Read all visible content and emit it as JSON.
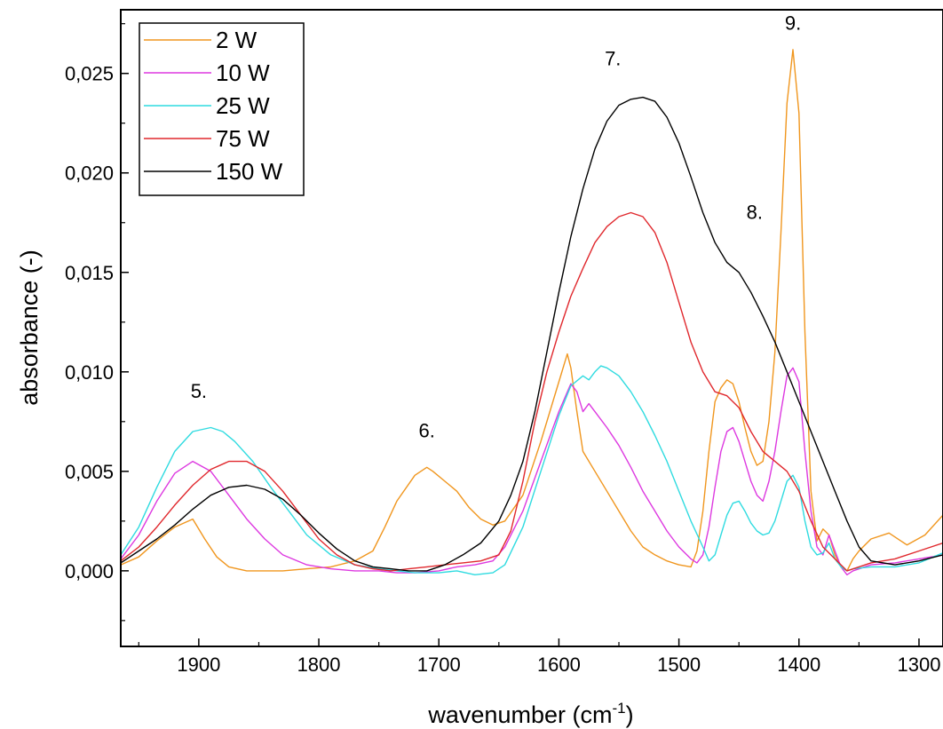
{
  "chart_data": {
    "type": "line",
    "xlabel": "wavenumber (cm",
    "xlabel_sup": "-1",
    "xlabel_close": ")",
    "ylabel": "absorbance (-)",
    "x_reversed": true,
    "xlim": [
      1965,
      1280
    ],
    "ylim": [
      -0.0038,
      0.0282
    ],
    "x_ticks": [
      {
        "value": 1900,
        "label": "1900"
      },
      {
        "value": 1800,
        "label": "1800"
      },
      {
        "value": 1700,
        "label": "1700"
      },
      {
        "value": 1600,
        "label": "1600"
      },
      {
        "value": 1500,
        "label": "1500"
      },
      {
        "value": 1400,
        "label": "1400"
      },
      {
        "value": 1300,
        "label": "1300"
      }
    ],
    "y_ticks": [
      {
        "value": 0.0,
        "label": "0,000"
      },
      {
        "value": 0.005,
        "label": "0,005"
      },
      {
        "value": 0.01,
        "label": "0,010"
      },
      {
        "value": 0.015,
        "label": "0,015"
      },
      {
        "value": 0.02,
        "label": "0,020"
      },
      {
        "value": 0.025,
        "label": "0,025"
      }
    ],
    "grid": false,
    "legend_position": "top-left",
    "series": [
      {
        "name": "2 W",
        "color": "#f0961e",
        "x": [
          1965,
          1950,
          1935,
          1920,
          1905,
          1895,
          1885,
          1875,
          1860,
          1845,
          1830,
          1810,
          1790,
          1770,
          1755,
          1745,
          1735,
          1720,
          1710,
          1705,
          1695,
          1685,
          1675,
          1665,
          1655,
          1645,
          1630,
          1615,
          1600,
          1593,
          1590,
          1585,
          1580,
          1570,
          1560,
          1550,
          1540,
          1530,
          1520,
          1510,
          1500,
          1490,
          1485,
          1480,
          1475,
          1470,
          1465,
          1460,
          1455,
          1450,
          1445,
          1440,
          1435,
          1430,
          1425,
          1420,
          1415,
          1410,
          1405,
          1400,
          1395,
          1390,
          1385,
          1380,
          1375,
          1370,
          1365,
          1360,
          1355,
          1350,
          1340,
          1325,
          1310,
          1295,
          1280
        ],
        "y": [
          0.0003,
          0.0007,
          0.0015,
          0.0022,
          0.0026,
          0.0016,
          0.0007,
          0.0002,
          0.0,
          0.0,
          0.0,
          0.0001,
          0.0002,
          0.0005,
          0.001,
          0.0022,
          0.0035,
          0.0048,
          0.0052,
          0.005,
          0.0045,
          0.004,
          0.0032,
          0.0026,
          0.0023,
          0.0025,
          0.0038,
          0.0065,
          0.0095,
          0.0109,
          0.0102,
          0.008,
          0.006,
          0.005,
          0.004,
          0.003,
          0.002,
          0.0012,
          0.0008,
          0.0005,
          0.0003,
          0.0002,
          0.001,
          0.003,
          0.006,
          0.0085,
          0.0092,
          0.0096,
          0.0094,
          0.0085,
          0.0072,
          0.006,
          0.0053,
          0.0055,
          0.0075,
          0.011,
          0.017,
          0.0235,
          0.0262,
          0.023,
          0.012,
          0.004,
          0.0015,
          0.0021,
          0.0018,
          0.0008,
          0.0002,
          0.0,
          0.0006,
          0.001,
          0.0016,
          0.0019,
          0.0013,
          0.0018,
          0.0028
        ]
      },
      {
        "name": "10 W",
        "color": "#dd39e0",
        "x": [
          1965,
          1950,
          1935,
          1920,
          1905,
          1890,
          1875,
          1860,
          1845,
          1830,
          1810,
          1790,
          1770,
          1750,
          1735,
          1720,
          1700,
          1685,
          1670,
          1655,
          1645,
          1630,
          1615,
          1600,
          1590,
          1585,
          1580,
          1575,
          1570,
          1560,
          1550,
          1540,
          1530,
          1520,
          1510,
          1500,
          1490,
          1485,
          1480,
          1475,
          1470,
          1465,
          1460,
          1455,
          1450,
          1445,
          1440,
          1435,
          1430,
          1425,
          1420,
          1415,
          1410,
          1405,
          1400,
          1395,
          1390,
          1385,
          1380,
          1375,
          1370,
          1365,
          1360,
          1355,
          1340,
          1320,
          1300,
          1280
        ],
        "y": [
          0.0006,
          0.0018,
          0.0035,
          0.0049,
          0.0055,
          0.005,
          0.0038,
          0.0026,
          0.0016,
          0.0008,
          0.0003,
          0.0001,
          0.0,
          0.0,
          -0.0001,
          -0.0001,
          0.0,
          0.0002,
          0.0003,
          0.0005,
          0.0012,
          0.003,
          0.0055,
          0.008,
          0.0094,
          0.009,
          0.008,
          0.0084,
          0.008,
          0.0072,
          0.0063,
          0.0052,
          0.004,
          0.003,
          0.002,
          0.0012,
          0.0006,
          0.0004,
          0.0008,
          0.0022,
          0.0042,
          0.006,
          0.007,
          0.0072,
          0.0065,
          0.0055,
          0.0045,
          0.0038,
          0.0035,
          0.0045,
          0.006,
          0.008,
          0.0098,
          0.0102,
          0.0095,
          0.006,
          0.003,
          0.0012,
          0.0008,
          0.0018,
          0.001,
          0.0002,
          -0.0002,
          0.0,
          0.0003,
          0.0004,
          0.0006,
          0.0008
        ]
      },
      {
        "name": "25 W",
        "color": "#2fdbe0",
        "x": [
          1965,
          1950,
          1935,
          1920,
          1905,
          1890,
          1880,
          1870,
          1855,
          1840,
          1825,
          1810,
          1790,
          1770,
          1750,
          1735,
          1720,
          1700,
          1685,
          1670,
          1655,
          1645,
          1630,
          1615,
          1600,
          1590,
          1580,
          1575,
          1570,
          1565,
          1560,
          1550,
          1540,
          1530,
          1520,
          1510,
          1500,
          1490,
          1480,
          1475,
          1470,
          1465,
          1460,
          1455,
          1450,
          1445,
          1440,
          1435,
          1430,
          1425,
          1420,
          1415,
          1410,
          1405,
          1400,
          1395,
          1390,
          1385,
          1380,
          1375,
          1370,
          1365,
          1360,
          1355,
          1340,
          1320,
          1300,
          1280
        ],
        "y": [
          0.0008,
          0.0022,
          0.0042,
          0.006,
          0.007,
          0.0072,
          0.007,
          0.0065,
          0.0055,
          0.0042,
          0.003,
          0.0018,
          0.0008,
          0.0003,
          0.0001,
          0.0,
          -0.0001,
          -0.0001,
          0.0,
          -0.0002,
          -0.0001,
          0.0003,
          0.0022,
          0.005,
          0.0078,
          0.0093,
          0.0098,
          0.0096,
          0.01,
          0.0103,
          0.0102,
          0.0098,
          0.009,
          0.008,
          0.0068,
          0.0055,
          0.004,
          0.0025,
          0.0012,
          0.0005,
          0.0008,
          0.0018,
          0.0028,
          0.0034,
          0.0035,
          0.003,
          0.0024,
          0.002,
          0.0018,
          0.0019,
          0.0025,
          0.0035,
          0.0045,
          0.0048,
          0.0042,
          0.0025,
          0.0012,
          0.0008,
          0.0009,
          0.0014,
          0.0006,
          0.0002,
          0.0,
          0.0001,
          0.0002,
          0.0002,
          0.0004,
          0.0009
        ]
      },
      {
        "name": "75 W",
        "color": "#e0282d",
        "x": [
          1965,
          1950,
          1935,
          1920,
          1905,
          1890,
          1875,
          1860,
          1845,
          1830,
          1815,
          1800,
          1785,
          1770,
          1755,
          1740,
          1725,
          1710,
          1695,
          1680,
          1665,
          1650,
          1640,
          1630,
          1620,
          1610,
          1600,
          1590,
          1580,
          1570,
          1560,
          1550,
          1540,
          1530,
          1520,
          1510,
          1500,
          1490,
          1480,
          1470,
          1460,
          1450,
          1440,
          1430,
          1420,
          1410,
          1400,
          1390,
          1380,
          1370,
          1360,
          1350,
          1340,
          1320,
          1300,
          1280
        ],
        "y": [
          0.0005,
          0.0012,
          0.0022,
          0.0033,
          0.0043,
          0.0051,
          0.0055,
          0.0055,
          0.005,
          0.004,
          0.0028,
          0.0016,
          0.0008,
          0.0003,
          0.0001,
          0.0,
          0.0001,
          0.0002,
          0.0003,
          0.0004,
          0.0005,
          0.0008,
          0.002,
          0.0045,
          0.0075,
          0.01,
          0.012,
          0.0138,
          0.0152,
          0.0165,
          0.0173,
          0.0178,
          0.018,
          0.0178,
          0.017,
          0.0155,
          0.0135,
          0.0115,
          0.01,
          0.009,
          0.0088,
          0.0082,
          0.007,
          0.006,
          0.0055,
          0.005,
          0.004,
          0.0025,
          0.0012,
          0.0006,
          0.0,
          0.0002,
          0.0004,
          0.0006,
          0.001,
          0.0014
        ]
      },
      {
        "name": "150 W",
        "color": "#000000",
        "x": [
          1965,
          1950,
          1935,
          1920,
          1905,
          1890,
          1875,
          1860,
          1845,
          1830,
          1815,
          1800,
          1785,
          1770,
          1755,
          1740,
          1725,
          1710,
          1695,
          1680,
          1665,
          1650,
          1640,
          1630,
          1620,
          1610,
          1600,
          1590,
          1580,
          1570,
          1560,
          1550,
          1540,
          1530,
          1520,
          1510,
          1500,
          1490,
          1480,
          1470,
          1460,
          1450,
          1440,
          1430,
          1420,
          1410,
          1400,
          1390,
          1380,
          1370,
          1360,
          1350,
          1340,
          1320,
          1300,
          1280
        ],
        "y": [
          0.0004,
          0.001,
          0.0016,
          0.0023,
          0.0031,
          0.0038,
          0.0042,
          0.0043,
          0.0041,
          0.0036,
          0.0028,
          0.0019,
          0.0011,
          0.0005,
          0.0002,
          0.0001,
          0.0,
          0.0,
          0.0003,
          0.0008,
          0.0014,
          0.0025,
          0.0038,
          0.0055,
          0.008,
          0.011,
          0.014,
          0.0168,
          0.0192,
          0.0212,
          0.0226,
          0.0234,
          0.0237,
          0.0238,
          0.0236,
          0.0228,
          0.0215,
          0.0198,
          0.018,
          0.0165,
          0.0155,
          0.015,
          0.014,
          0.0128,
          0.0115,
          0.01,
          0.0085,
          0.007,
          0.0055,
          0.004,
          0.0025,
          0.0012,
          0.0005,
          0.0003,
          0.0005,
          0.0008
        ]
      }
    ],
    "annotations": [
      {
        "text": "5.",
        "x": 1900,
        "y": 0.0087
      },
      {
        "text": "6.",
        "x": 1710,
        "y": 0.0067
      },
      {
        "text": "7.",
        "x": 1555,
        "y": 0.0254
      },
      {
        "text": "8.",
        "x": 1437,
        "y": 0.0177
      },
      {
        "text": "9.",
        "x": 1405,
        "y": 0.0272
      }
    ]
  }
}
